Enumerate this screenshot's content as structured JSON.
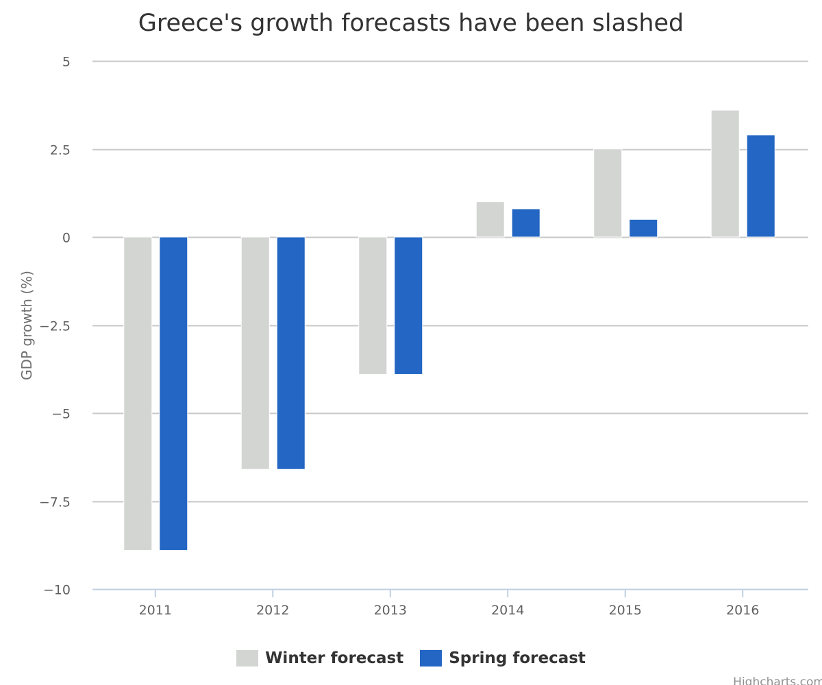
{
  "chart_data": {
    "type": "bar",
    "title": "Greece's growth forecasts have been slashed",
    "xlabel": "",
    "ylabel": "GDP growth (%)",
    "categories": [
      "2011",
      "2012",
      "2013",
      "2014",
      "2015",
      "2016"
    ],
    "ylim": [
      -10,
      5
    ],
    "yticks": [
      5,
      2.5,
      0,
      -2.5,
      -5,
      -7.5,
      -10
    ],
    "ytick_labels": [
      "5",
      "2.5",
      "0",
      "−2.5",
      "−5",
      "−7.5",
      "−10"
    ],
    "grid": true,
    "legend_placement": "bottom-center",
    "series": [
      {
        "name": "Winter forecast",
        "color": "#d2d5d2",
        "values": [
          -8.9,
          -6.6,
          -3.9,
          1.0,
          2.5,
          3.6
        ]
      },
      {
        "name": "Spring forecast",
        "color": "#2366c3",
        "values": [
          -8.9,
          -6.6,
          -3.9,
          0.8,
          0.5,
          2.9
        ]
      }
    ]
  },
  "credit": "Highcharts.com"
}
